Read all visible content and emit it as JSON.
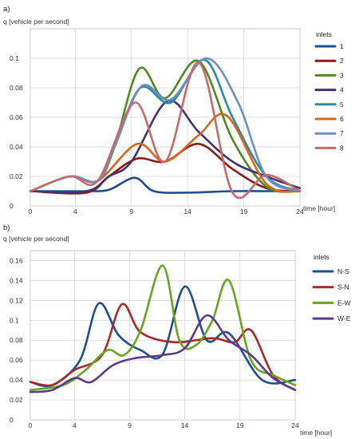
{
  "colors": {
    "c1": "#1f4e8c",
    "c2": "#8b1a1a",
    "c3": "#4f8a1f",
    "c4": "#46306e",
    "c5": "#2a8aa0",
    "c6": "#d9661a",
    "c7": "#6d8ec4",
    "c8": "#c46a6a",
    "ns": "#1f4e8c",
    "sn": "#a52a2a",
    "ew": "#6aa31f",
    "we": "#5a3a8c"
  },
  "chart_data": [
    {
      "type": "line",
      "panel_label": "a)",
      "ylabel": "q [vehicle per second]",
      "xlabel": "time [hour]",
      "xticks": [
        "0",
        "4",
        "9",
        "14",
        "19",
        "24"
      ],
      "xlim": [
        0,
        24
      ],
      "ylim": [
        0,
        0.12
      ],
      "yticks": [
        "0",
        "0.02",
        "0.04",
        "0.06",
        "0.08",
        "0.1"
      ],
      "legend_title": "inlets",
      "series": [
        {
          "name": "1",
          "color_key": "c1",
          "x": [
            0,
            5,
            7,
            9.3,
            11,
            14,
            18,
            21,
            24
          ],
          "y": [
            0.01,
            0.01,
            0.011,
            0.019,
            0.01,
            0.009,
            0.01,
            0.01,
            0.01
          ]
        },
        {
          "name": "2",
          "color_key": "c2",
          "x": [
            0,
            5,
            7,
            9.5,
            12,
            15,
            18,
            21,
            24
          ],
          "y": [
            0.01,
            0.009,
            0.02,
            0.032,
            0.03,
            0.042,
            0.025,
            0.012,
            0.01
          ]
        },
        {
          "name": "3",
          "color_key": "c3",
          "x": [
            0,
            3.5,
            6,
            7.5,
            9.7,
            12,
            15,
            18,
            21,
            24
          ],
          "y": [
            0.01,
            0.02,
            0.017,
            0.04,
            0.093,
            0.073,
            0.098,
            0.045,
            0.013,
            0.01
          ]
        },
        {
          "name": "4",
          "color_key": "c4",
          "x": [
            0,
            5,
            7,
            9,
            12.2,
            15,
            18,
            21,
            24
          ],
          "y": [
            0.01,
            0.01,
            0.02,
            0.03,
            0.071,
            0.05,
            0.03,
            0.02,
            0.012
          ]
        },
        {
          "name": "5",
          "color_key": "c5",
          "x": [
            0,
            3.5,
            6,
            7.5,
            9.8,
            12.5,
            15.5,
            18,
            21,
            24
          ],
          "y": [
            0.01,
            0.02,
            0.017,
            0.04,
            0.08,
            0.07,
            0.099,
            0.06,
            0.02,
            0.01
          ]
        },
        {
          "name": "6",
          "color_key": "c6",
          "x": [
            0,
            3.5,
            6,
            9.5,
            12,
            15,
            17.5,
            21,
            24
          ],
          "y": [
            0.01,
            0.02,
            0.017,
            0.042,
            0.03,
            0.048,
            0.061,
            0.015,
            0.01
          ]
        },
        {
          "name": "7",
          "color_key": "c7",
          "x": [
            0,
            3.5,
            6,
            7.5,
            9.9,
            12.5,
            15.7,
            18.5,
            21,
            24
          ],
          "y": [
            0.01,
            0.02,
            0.017,
            0.04,
            0.081,
            0.072,
            0.1,
            0.07,
            0.02,
            0.01
          ]
        },
        {
          "name": "8",
          "color_key": "c8",
          "x": [
            0,
            3.5,
            6,
            9.3,
            12,
            15,
            18,
            21,
            24
          ],
          "y": [
            0.01,
            0.02,
            0.017,
            0.07,
            0.03,
            0.097,
            0.009,
            0.021,
            0.01
          ]
        }
      ]
    },
    {
      "type": "line",
      "panel_label": "b)",
      "ylabel": "q [vehicle per second]",
      "xlabel": "time [hour]",
      "xticks": [
        "0",
        "4",
        "9",
        "14",
        "19",
        "24"
      ],
      "xlim": [
        0,
        24
      ],
      "ylim": [
        0,
        0.17
      ],
      "yticks": [
        "0",
        "0.02",
        "0.04",
        "0.06",
        "0.08",
        "0.1",
        "0.12",
        "0.14",
        "0.16"
      ],
      "legend_title": "inlets",
      "series": [
        {
          "name": "N-S",
          "color_key": "ns",
          "x": [
            0,
            2,
            4.5,
            6.2,
            8,
            10,
            12,
            14,
            16,
            18,
            21,
            24
          ],
          "y": [
            0.038,
            0.035,
            0.06,
            0.117,
            0.085,
            0.07,
            0.066,
            0.134,
            0.08,
            0.087,
            0.04,
            0.04
          ]
        },
        {
          "name": "S-N",
          "color_key": "sn",
          "x": [
            0,
            2,
            4,
            6.5,
            8.3,
            10,
            13,
            16.5,
            18.5,
            20,
            22,
            24
          ],
          "y": [
            0.038,
            0.035,
            0.05,
            0.065,
            0.116,
            0.088,
            0.078,
            0.082,
            0.078,
            0.09,
            0.045,
            0.03
          ]
        },
        {
          "name": "E-W",
          "color_key": "ew",
          "x": [
            0,
            3,
            5,
            7,
            8.5,
            10,
            12,
            13.5,
            15,
            16.5,
            18,
            20,
            22,
            24
          ],
          "y": [
            0.03,
            0.035,
            0.05,
            0.07,
            0.065,
            0.09,
            0.155,
            0.08,
            0.075,
            0.1,
            0.14,
            0.06,
            0.045,
            0.035
          ]
        },
        {
          "name": "W-E",
          "color_key": "we",
          "x": [
            0,
            2,
            4,
            5.5,
            7.5,
            9.5,
            12,
            14,
            16,
            18,
            20,
            22,
            24
          ],
          "y": [
            0.028,
            0.03,
            0.042,
            0.038,
            0.055,
            0.062,
            0.065,
            0.072,
            0.105,
            0.08,
            0.065,
            0.042,
            0.03
          ]
        }
      ]
    }
  ]
}
